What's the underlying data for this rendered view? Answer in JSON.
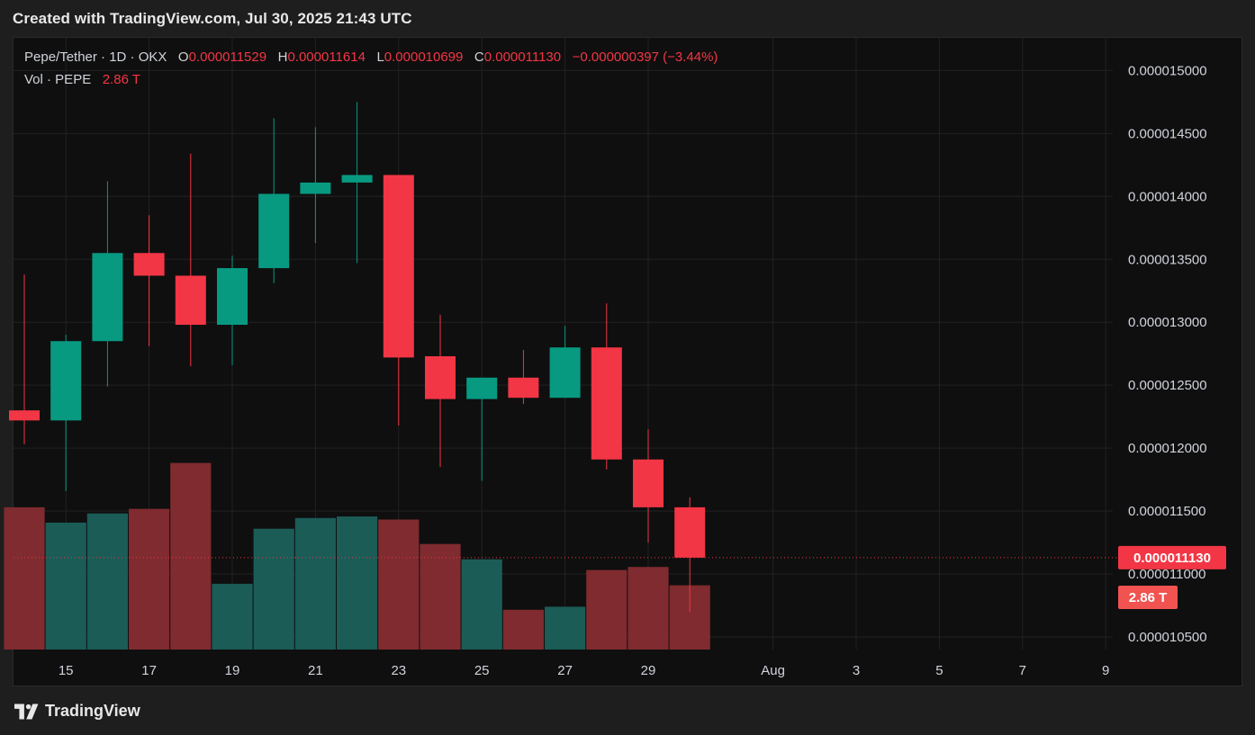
{
  "header": {
    "title": "Created with TradingView.com, Jul 30, 2025 21:43 UTC"
  },
  "legend": {
    "symbol": "Pepe/Tether · 1D · OKX",
    "o_label": "O",
    "o_value": "0.000011529",
    "h_label": "H",
    "h_value": "0.000011614",
    "l_label": "L",
    "l_value": "0.000010699",
    "c_label": "C",
    "c_value": "0.000011130",
    "change": "−0.000000397 (−3.44%)",
    "vol_label": "Vol · PEPE",
    "vol_value": "2.86 T"
  },
  "footer": {
    "brand": "TradingView"
  },
  "colors": {
    "up": "#089981",
    "down": "#f23645",
    "vol_up": "#1b5c57",
    "vol_down": "#7f2b2f",
    "grid": "#222222",
    "panel_bg": "#0f0f0f",
    "axis_text": "#d1d4dc"
  },
  "chart_data": {
    "type": "candlestick",
    "interval": "1D",
    "y_axis": {
      "ticks": [
        "0.000015000",
        "0.000014500",
        "0.000014000",
        "0.000013500",
        "0.000013000",
        "0.000012500",
        "0.000012000",
        "0.000011500",
        "0.000011000",
        "0.000010500"
      ],
      "tick_values": [
        1.5e-05,
        1.45e-05,
        1.4e-05,
        1.35e-05,
        1.3e-05,
        1.25e-05,
        1.2e-05,
        1.15e-05,
        1.1e-05,
        1.05e-05
      ],
      "range": [
        1.04e-05,
        1.526e-05
      ],
      "position": "right"
    },
    "x_axis": {
      "ticks": [
        "15",
        "17",
        "19",
        "21",
        "23",
        "25",
        "27",
        "29",
        "Aug",
        "3",
        "5",
        "7",
        "9"
      ],
      "tick_dates": [
        "2025-07-15",
        "2025-07-17",
        "2025-07-19",
        "2025-07-21",
        "2025-07-23",
        "2025-07-25",
        "2025-07-27",
        "2025-07-29",
        "2025-08-01",
        "2025-08-03",
        "2025-08-05",
        "2025-08-07",
        "2025-08-09"
      ]
    },
    "last_price": {
      "value": 1.113e-05,
      "label": "0.000011130"
    },
    "last_volume": {
      "label": "2.86 T"
    },
    "candles": [
      {
        "date": "2025-07-14",
        "o": 1.23e-05,
        "h": 1.338e-05,
        "l": 1.203e-05,
        "c": 1.222e-05,
        "vol_rel": 0.93
      },
      {
        "date": "2025-07-15",
        "o": 1.222e-05,
        "h": 1.29e-05,
        "l": 1.166e-05,
        "c": 1.285e-05,
        "vol_rel": 0.83
      },
      {
        "date": "2025-07-16",
        "o": 1.285e-05,
        "h": 1.412e-05,
        "l": 1.249e-05,
        "c": 1.355e-05,
        "vol_rel": 0.89
      },
      {
        "date": "2025-07-17",
        "o": 1.355e-05,
        "h": 1.385e-05,
        "l": 1.281e-05,
        "c": 1.337e-05,
        "vol_rel": 0.92
      },
      {
        "date": "2025-07-18",
        "o": 1.337e-05,
        "h": 1.434e-05,
        "l": 1.265e-05,
        "c": 1.298e-05,
        "vol_rel": 1.22
      },
      {
        "date": "2025-07-19",
        "o": 1.298e-05,
        "h": 1.353e-05,
        "l": 1.266e-05,
        "c": 1.343e-05,
        "vol_rel": 0.43
      },
      {
        "date": "2025-07-20",
        "o": 1.343e-05,
        "h": 1.462e-05,
        "l": 1.331e-05,
        "c": 1.402e-05,
        "vol_rel": 0.79
      },
      {
        "date": "2025-07-21",
        "o": 1.402e-05,
        "h": 1.455e-05,
        "l": 1.363e-05,
        "c": 1.411e-05,
        "vol_rel": 0.86
      },
      {
        "date": "2025-07-22",
        "o": 1.411e-05,
        "h": 1.475e-05,
        "l": 1.347e-05,
        "c": 1.417e-05,
        "vol_rel": 0.87
      },
      {
        "date": "2025-07-23",
        "o": 1.417e-05,
        "h": 1.417e-05,
        "l": 1.218e-05,
        "c": 1.272e-05,
        "vol_rel": 0.85
      },
      {
        "date": "2025-07-24",
        "o": 1.273e-05,
        "h": 1.306e-05,
        "l": 1.185e-05,
        "c": 1.239e-05,
        "vol_rel": 0.69
      },
      {
        "date": "2025-07-25",
        "o": 1.239e-05,
        "h": 1.255e-05,
        "l": 1.174e-05,
        "c": 1.256e-05,
        "vol_rel": 0.59
      },
      {
        "date": "2025-07-26",
        "o": 1.256e-05,
        "h": 1.278e-05,
        "l": 1.235e-05,
        "c": 1.24e-05,
        "vol_rel": 0.26
      },
      {
        "date": "2025-07-27",
        "o": 1.24e-05,
        "h": 1.297e-05,
        "l": 1.24e-05,
        "c": 1.28e-05,
        "vol_rel": 0.28
      },
      {
        "date": "2025-07-28",
        "o": 1.28e-05,
        "h": 1.315e-05,
        "l": 1.183e-05,
        "c": 1.191e-05,
        "vol_rel": 0.52
      },
      {
        "date": "2025-07-29",
        "o": 1.191e-05,
        "h": 1.215e-05,
        "l": 1.125e-05,
        "c": 1.153e-05,
        "vol_rel": 0.54
      },
      {
        "date": "2025-07-30",
        "o": 1.153e-05,
        "h": 1.161e-05,
        "l": 1.07e-05,
        "c": 1.113e-05,
        "vol_rel": 0.42
      }
    ]
  }
}
